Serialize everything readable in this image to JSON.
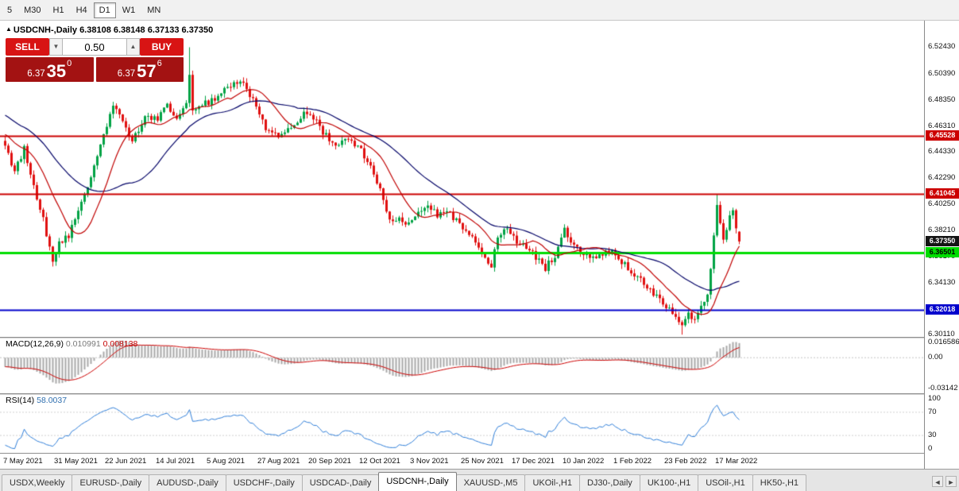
{
  "toolbar": {
    "timeframes": [
      {
        "label": "5",
        "active": false
      },
      {
        "label": "M30",
        "active": false
      },
      {
        "label": "H1",
        "active": false
      },
      {
        "label": "H4",
        "active": false
      },
      {
        "label": "D1",
        "active": true
      },
      {
        "label": "W1",
        "active": false
      },
      {
        "label": "MN",
        "active": false
      }
    ]
  },
  "chart": {
    "marker": "▲",
    "title": "USDCNH-,Daily",
    "ohlc": "6.38108 6.38148 6.37133 6.37350"
  },
  "trade_panel": {
    "sell_label": "SELL",
    "buy_label": "BUY",
    "volume": "0.50",
    "volume_decrease_icon": "▼",
    "volume_increase_icon": "▲",
    "sell_price": {
      "prefix": "6.37",
      "big": "35",
      "sup": "0"
    },
    "buy_price": {
      "prefix": "6.37",
      "big": "57",
      "sup": "6"
    }
  },
  "price_axis": {
    "ticks": [
      "6.52430",
      "6.50390",
      "6.48350",
      "6.46310",
      "6.44330",
      "6.42290",
      "6.40250",
      "6.38210",
      "6.36170",
      "6.34130",
      "6.32090",
      "6.30110"
    ],
    "tags": [
      {
        "value": "6.45528",
        "bg": "#cc0000",
        "fg": "#ffffff"
      },
      {
        "value": "6.41045",
        "bg": "#cc0000",
        "fg": "#ffffff"
      },
      {
        "value": "6.37350",
        "bg": "#141414",
        "fg": "#ffffff"
      },
      {
        "value": "6.36501",
        "bg": "#00dd00",
        "fg": "#000000"
      },
      {
        "value": "6.32018",
        "bg": "#0000cc",
        "fg": "#ffffff"
      }
    ]
  },
  "macd_panel": {
    "name": "MACD(12,26,9)",
    "value1": "0.010991",
    "value2": "0.008138",
    "ticks": [
      "0.016586",
      "0.00",
      "-0.03142"
    ]
  },
  "rsi_panel": {
    "name": "RSI(14)",
    "value": "58.0037",
    "ticks": [
      "100",
      "70",
      "30",
      "0"
    ]
  },
  "tabs": {
    "items": [
      {
        "label": "USDX,Weekly",
        "active": false
      },
      {
        "label": "EURUSD-,Daily",
        "active": false
      },
      {
        "label": "AUDUSD-,Daily",
        "active": false
      },
      {
        "label": "USDCHF-,Daily",
        "active": false
      },
      {
        "label": "USDCAD-,Daily",
        "active": false
      },
      {
        "label": "USDCNH-,Daily",
        "active": true
      },
      {
        "label": "XAUUSD-,M5",
        "active": false
      },
      {
        "label": "UKOil-,H1",
        "active": false
      },
      {
        "label": "DJ30-,Daily",
        "active": false
      },
      {
        "label": "UK100-,H1",
        "active": false
      },
      {
        "label": "USOil-,H1",
        "active": false
      },
      {
        "label": "HK50-,H1",
        "active": false
      }
    ],
    "scroll_left_icon": "◄",
    "scroll_right_icon": "►"
  },
  "chart_data": {
    "type": "candlestick",
    "symbol": "USDCNH-",
    "period": "Daily",
    "current_bar": {
      "open": 6.38108,
      "high": 6.38148,
      "low": 6.37133,
      "close": 6.3735
    },
    "bid": 6.3735,
    "ask": 6.37576,
    "y_range": [
      6.3,
      6.5425
    ],
    "bars_visible": 232,
    "up_color": "#00a244",
    "down_color": "#e01010",
    "ma_fast_period": 13,
    "ma_fast_color": "#c00000",
    "ma_slow_period": 34,
    "ma_slow_color": "#000066",
    "h_lines": [
      {
        "price": 6.45528,
        "color": "#cc0000",
        "width": 2
      },
      {
        "price": 6.41045,
        "color": "#cc0000",
        "width": 2
      },
      {
        "price": 6.36501,
        "color": "#00dd00",
        "width": 3
      },
      {
        "price": 6.32018,
        "color": "#0000cc",
        "width": 2
      }
    ],
    "x_axis_labels": [
      "7 May 2021",
      "31 May 2021",
      "22 Jun 2021",
      "14 Jul 2021",
      "5 Aug 2021",
      "27 Aug 2021",
      "20 Sep 2021",
      "12 Oct 2021",
      "3 Nov 2021",
      "25 Nov 2021",
      "17 Dec 2021",
      "10 Jan 2022",
      "1 Feb 2022",
      "23 Feb 2022",
      "17 Mar 2022"
    ],
    "price_path_anchors": [
      [
        -40,
        6.505
      ],
      [
        -30,
        6.49
      ],
      [
        -20,
        6.478
      ],
      [
        -10,
        6.462
      ],
      [
        0,
        6.45
      ],
      [
        3,
        6.427
      ],
      [
        6,
        6.446
      ],
      [
        9,
        6.415
      ],
      [
        12,
        6.39
      ],
      [
        15,
        6.359
      ],
      [
        17,
        6.372
      ],
      [
        20,
        6.378
      ],
      [
        24,
        6.402
      ],
      [
        28,
        6.432
      ],
      [
        31,
        6.455
      ],
      [
        34,
        6.478
      ],
      [
        37,
        6.468
      ],
      [
        40,
        6.451
      ],
      [
        44,
        6.471
      ],
      [
        48,
        6.468
      ],
      [
        51,
        6.479
      ],
      [
        54,
        6.469
      ],
      [
        57,
        6.479
      ],
      [
        58,
        6.503
      ],
      [
        59,
        6.473
      ],
      [
        62,
        6.479
      ],
      [
        66,
        6.485
      ],
      [
        70,
        6.492
      ],
      [
        74,
        6.498
      ],
      [
        78,
        6.483
      ],
      [
        82,
        6.462
      ],
      [
        86,
        6.455
      ],
      [
        90,
        6.463
      ],
      [
        94,
        6.473
      ],
      [
        97,
        6.47
      ],
      [
        100,
        6.458
      ],
      [
        104,
        6.449
      ],
      [
        108,
        6.453
      ],
      [
        112,
        6.444
      ],
      [
        116,
        6.426
      ],
      [
        119,
        6.406
      ],
      [
        121,
        6.389
      ],
      [
        124,
        6.393
      ],
      [
        127,
        6.386
      ],
      [
        130,
        6.398
      ],
      [
        133,
        6.403
      ],
      [
        136,
        6.393
      ],
      [
        139,
        6.399
      ],
      [
        142,
        6.389
      ],
      [
        145,
        6.381
      ],
      [
        148,
        6.374
      ],
      [
        151,
        6.359
      ],
      [
        153,
        6.353
      ],
      [
        155,
        6.379
      ],
      [
        158,
        6.385
      ],
      [
        161,
        6.373
      ],
      [
        164,
        6.369
      ],
      [
        167,
        6.361
      ],
      [
        170,
        6.353
      ],
      [
        173,
        6.363
      ],
      [
        176,
        6.384
      ],
      [
        178,
        6.373
      ],
      [
        181,
        6.366
      ],
      [
        184,
        6.359
      ],
      [
        187,
        6.363
      ],
      [
        190,
        6.366
      ],
      [
        193,
        6.361
      ],
      [
        196,
        6.353
      ],
      [
        199,
        6.346
      ],
      [
        202,
        6.339
      ],
      [
        205,
        6.331
      ],
      [
        208,
        6.323
      ],
      [
        211,
        6.316
      ],
      [
        213,
        6.309
      ],
      [
        215,
        6.317
      ],
      [
        217,
        6.313
      ],
      [
        219,
        6.323
      ],
      [
        221,
        6.331
      ],
      [
        222,
        6.353
      ],
      [
        223,
        6.376
      ],
      [
        224,
        6.403
      ],
      [
        225,
        6.389
      ],
      [
        226,
        6.376
      ],
      [
        227,
        6.384
      ],
      [
        228,
        6.392
      ],
      [
        229,
        6.398
      ],
      [
        230,
        6.386
      ],
      [
        231,
        6.3735
      ]
    ],
    "bar_overrides": {
      "58": {
        "high": 6.5243
      },
      "213": {
        "low": 6.3011
      },
      "224": {
        "high": 6.4104
      },
      "231": {
        "open": 6.38108,
        "high": 6.38148,
        "low": 6.37133,
        "close": 6.3735
      }
    },
    "indicators": {
      "macd": {
        "fast": 12,
        "slow": 26,
        "signal": 9,
        "scale_max": 0.0185,
        "scale_min": -0.0335,
        "histogram_color": "#a9a9a9",
        "signal_color": "#cc0000"
      },
      "rsi": {
        "period": 14,
        "value": 58.0037,
        "line_color": "#2f7ed8",
        "levels": [
          70,
          30
        ]
      }
    }
  }
}
